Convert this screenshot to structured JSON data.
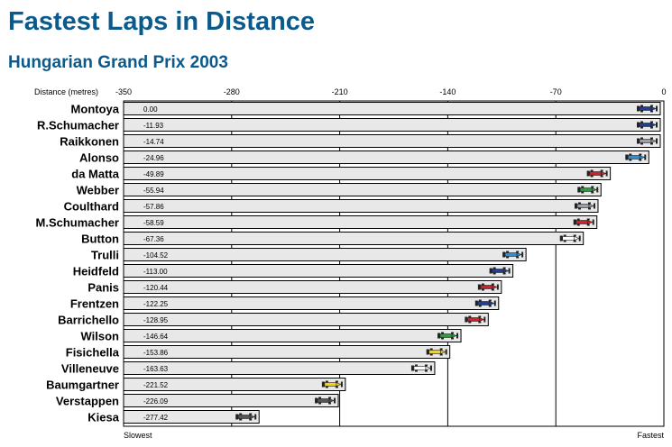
{
  "page": {
    "title": "Fastest Laps in Distance",
    "subtitle": "Hungarian Grand Prix 2003"
  },
  "chart_data": {
    "type": "bar",
    "orientation": "horizontal",
    "title": "Fastest Laps in Distance",
    "subtitle": "Hungarian Grand Prix 2003",
    "xlabel": "Distance (metres)",
    "xlim": [
      -350,
      0
    ],
    "x_ticks": [
      -350,
      -280,
      -210,
      -140,
      -70,
      0
    ],
    "left_end_label": "Slowest",
    "right_end_label": "Fastest",
    "grid": true,
    "bar_color": "#e8e8e8",
    "categories": [
      "Montoya",
      "R.Schumacher",
      "Raikkonen",
      "Alonso",
      "da Matta",
      "Webber",
      "Coulthard",
      "M.Schumacher",
      "Button",
      "Trulli",
      "Heidfeld",
      "Panis",
      "Frentzen",
      "Barrichello",
      "Wilson",
      "Fisichella",
      "Villeneuve",
      "Baumgartner",
      "Verstappen",
      "Kiesa"
    ],
    "values": [
      0.0,
      -11.93,
      -14.74,
      -24.96,
      -49.89,
      -55.94,
      -57.86,
      -58.59,
      -67.36,
      -104.52,
      -113.0,
      -120.44,
      -122.25,
      -128.95,
      -146.64,
      -153.86,
      -163.63,
      -221.52,
      -226.09,
      -277.42
    ],
    "value_labels": [
      "0.00",
      "-11.93",
      "-14.74",
      "-24.96",
      "-49.89",
      "-55.94",
      "-57.86",
      "-58.59",
      "-67.36",
      "-104.52",
      "-113.00",
      "-120.44",
      "-122.25",
      "-128.95",
      "-146.64",
      "-153.86",
      "-163.63",
      "-221.52",
      "-226.09",
      "-277.42"
    ],
    "car_colors": [
      "#1c3f9e",
      "#1c3f9e",
      "#9aa0a8",
      "#2e8fd6",
      "#d0202a",
      "#28a03c",
      "#9aa0a8",
      "#d0202a",
      "#ffffff",
      "#2e8fd6",
      "#1c3f9e",
      "#d0202a",
      "#1c3f9e",
      "#d0202a",
      "#28a03c",
      "#f2d21a",
      "#ffffff",
      "#f2d21a",
      "#555555",
      "#555555"
    ]
  }
}
